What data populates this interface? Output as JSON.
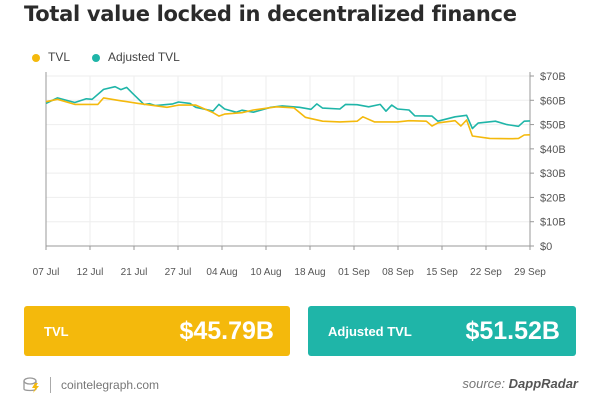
{
  "title": "Total value locked in decentralized finance",
  "colors": {
    "tvl": "#f4b90c",
    "adjusted": "#1fb5a8"
  },
  "chart_data": {
    "type": "line",
    "title": "Total value locked in decentralized finance",
    "y_axis_position": "right",
    "ylim": [
      0,
      70
    ],
    "y_ticks": [
      "$0",
      "$10B",
      "$20B",
      "$30B",
      "$40B",
      "$50B",
      "$60B",
      "$70B"
    ],
    "x_ticks": [
      "07 Jul",
      "12 Jul",
      "21 Jul",
      "27 Jul",
      "04 Aug",
      "10 Aug",
      "18 Aug",
      "01 Sep",
      "08 Sep",
      "15 Sep",
      "22 Sep",
      "29 Sep"
    ],
    "grid": true,
    "legend": "top-left",
    "unit": "billion USD",
    "series": [
      {
        "name": "TVL",
        "points": [
          [
            "07 Jul",
            59.4
          ],
          [
            "09 Jul",
            60.4
          ],
          [
            "12 Jul",
            58.3
          ],
          [
            "16 Jul",
            58.3
          ],
          [
            "17 Jul",
            61
          ],
          [
            "20 Jul",
            59.8
          ],
          [
            "23 Jul",
            58.7
          ],
          [
            "28 Jul",
            57.1
          ],
          [
            "30 Jul",
            58
          ],
          [
            "02 Aug",
            58
          ],
          [
            "05 Aug",
            54.9
          ],
          [
            "06 Aug",
            53.5
          ],
          [
            "07 Aug",
            54.3
          ],
          [
            "10 Aug",
            54.9
          ],
          [
            "12 Aug",
            56
          ],
          [
            "16 Aug",
            57.3
          ],
          [
            "19 Aug",
            56.9
          ],
          [
            "21 Aug",
            53
          ],
          [
            "24 Aug",
            51.4
          ],
          [
            "27 Aug",
            51.1
          ],
          [
            "30 Aug",
            51.4
          ],
          [
            "31 Aug",
            53.2
          ],
          [
            "02 Sep",
            51.1
          ],
          [
            "06 Sep",
            51.1
          ],
          [
            "08 Sep",
            51.6
          ],
          [
            "11 Sep",
            51.4
          ],
          [
            "12 Sep",
            49.4
          ],
          [
            "13 Sep",
            50.7
          ],
          [
            "16 Sep",
            51.6
          ],
          [
            "17 Sep",
            49.4
          ],
          [
            "18 Sep",
            51.9
          ],
          [
            "19 Sep",
            45.3
          ],
          [
            "22 Sep",
            44.3
          ],
          [
            "26 Sep",
            44.2
          ],
          [
            "27 Sep",
            44.3
          ],
          [
            "28 Sep",
            45.7
          ],
          [
            "29 Sep",
            45.79
          ]
        ]
      },
      {
        "name": "Adjusted TVL",
        "points": [
          [
            "07 Jul",
            58.7
          ],
          [
            "09 Jul",
            61
          ],
          [
            "12 Jul",
            59.1
          ],
          [
            "14 Jul",
            60.6
          ],
          [
            "15 Jul",
            60.4
          ],
          [
            "17 Jul",
            64.5
          ],
          [
            "19 Jul",
            65.6
          ],
          [
            "20 Jul",
            64.4
          ],
          [
            "21 Jul",
            65.3
          ],
          [
            "22 Jul",
            62.9
          ],
          [
            "24 Jul",
            58.3
          ],
          [
            "25 Jul",
            58.6
          ],
          [
            "26 Jul",
            57.8
          ],
          [
            "29 Jul",
            58.5
          ],
          [
            "30 Jul",
            59.3
          ],
          [
            "01 Aug",
            58.7
          ],
          [
            "02 Aug",
            57.1
          ],
          [
            "05 Aug",
            55.6
          ],
          [
            "06 Aug",
            58.3
          ],
          [
            "07 Aug",
            56.4
          ],
          [
            "09 Aug",
            55.1
          ],
          [
            "10 Aug",
            55.9
          ],
          [
            "12 Aug",
            55.1
          ],
          [
            "15 Aug",
            57.1
          ],
          [
            "17 Aug",
            57.7
          ],
          [
            "20 Aug",
            57.1
          ],
          [
            "22 Aug",
            56.3
          ],
          [
            "23 Aug",
            58.5
          ],
          [
            "24 Aug",
            56.8
          ],
          [
            "27 Aug",
            56.4
          ],
          [
            "28 Aug",
            58.3
          ],
          [
            "30 Aug",
            58.2
          ],
          [
            "01 Sep",
            57.3
          ],
          [
            "03 Sep",
            58.3
          ],
          [
            "04 Sep",
            55.5
          ],
          [
            "05 Sep",
            58
          ],
          [
            "06 Sep",
            56.4
          ],
          [
            "08 Sep",
            56
          ],
          [
            "09 Sep",
            53.6
          ],
          [
            "12 Sep",
            53.5
          ],
          [
            "13 Sep",
            51.4
          ],
          [
            "16 Sep",
            53.2
          ],
          [
            "18 Sep",
            53.8
          ],
          [
            "19 Sep",
            48.4
          ],
          [
            "20 Sep",
            50.6
          ],
          [
            "23 Sep",
            51.4
          ],
          [
            "25 Sep",
            50
          ],
          [
            "27 Sep",
            49.3
          ],
          [
            "28 Sep",
            51.4
          ],
          [
            "29 Sep",
            51.52
          ]
        ]
      }
    ]
  },
  "cards": {
    "tvl": {
      "label": "TVL",
      "value": "$45.79B"
    },
    "adjusted": {
      "label": "Adjusted TVL",
      "value": "$51.52B"
    }
  },
  "footer": {
    "site": "cointelegraph.com",
    "source_prefix": "source: ",
    "source_name": "DappRadar"
  }
}
